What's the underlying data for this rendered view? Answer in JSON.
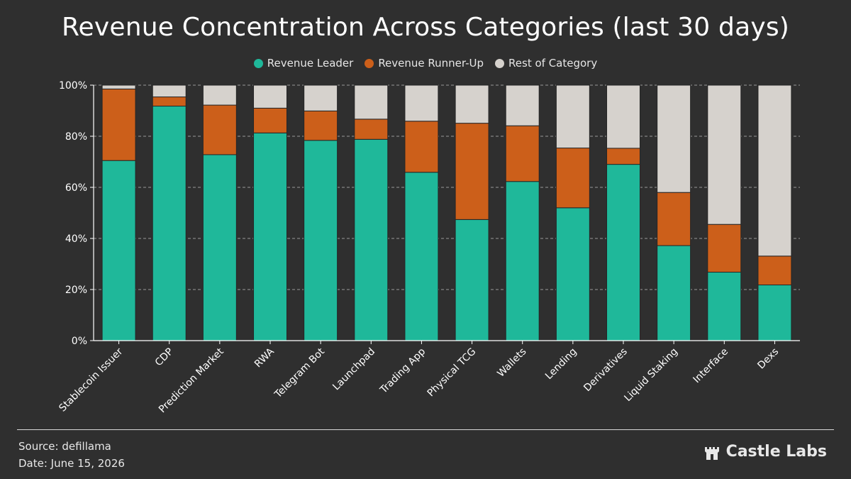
{
  "chart_data": {
    "type": "bar",
    "stacked": true,
    "title": "Revenue Concentration Across Categories (last 30 days)",
    "xlabel": "",
    "ylabel": "",
    "ylim": [
      0,
      100
    ],
    "y_ticks": [
      "0%",
      "20%",
      "40%",
      "60%",
      "80%",
      "100%"
    ],
    "grid": true,
    "legend_position": "top-center",
    "categories": [
      "Stablecoin Issuer",
      "CDP",
      "Prediction Market",
      "RWA",
      "Telegram Bot",
      "Launchpad",
      "Trading App",
      "Physical TCG",
      "Wallets",
      "Lending",
      "Derivatives",
      "Liquid Staking",
      "Interface",
      "Dexs"
    ],
    "series": [
      {
        "name": "Revenue Leader",
        "color": "#1fb89a",
        "values": [
          70.5,
          91.8,
          72.8,
          81.3,
          78.4,
          78.8,
          65.9,
          47.4,
          62.3,
          52.0,
          69.0,
          37.2,
          26.8,
          21.8
        ]
      },
      {
        "name": "Revenue Runner-Up",
        "color": "#cc5f1a",
        "values": [
          28.0,
          3.6,
          19.4,
          9.7,
          11.5,
          7.9,
          20.0,
          37.7,
          21.8,
          23.4,
          6.3,
          20.8,
          18.7,
          11.3
        ]
      },
      {
        "name": "Rest of Category",
        "color": "#d6d2cd",
        "values": [
          1.5,
          4.6,
          7.8,
          9.0,
          10.1,
          13.3,
          14.1,
          14.9,
          15.9,
          24.6,
          24.7,
          42.0,
          54.5,
          66.9
        ]
      }
    ]
  },
  "footer": {
    "source": "Source: defillama",
    "date": "Date: June 15, 2026",
    "brand": "Castle Labs",
    "brand_icon": "castle-icon"
  },
  "colors": {
    "background": "#2f2f2f",
    "axis": "#ffffff",
    "grid": "#9a9a9a",
    "bar_outline": "#262626"
  }
}
